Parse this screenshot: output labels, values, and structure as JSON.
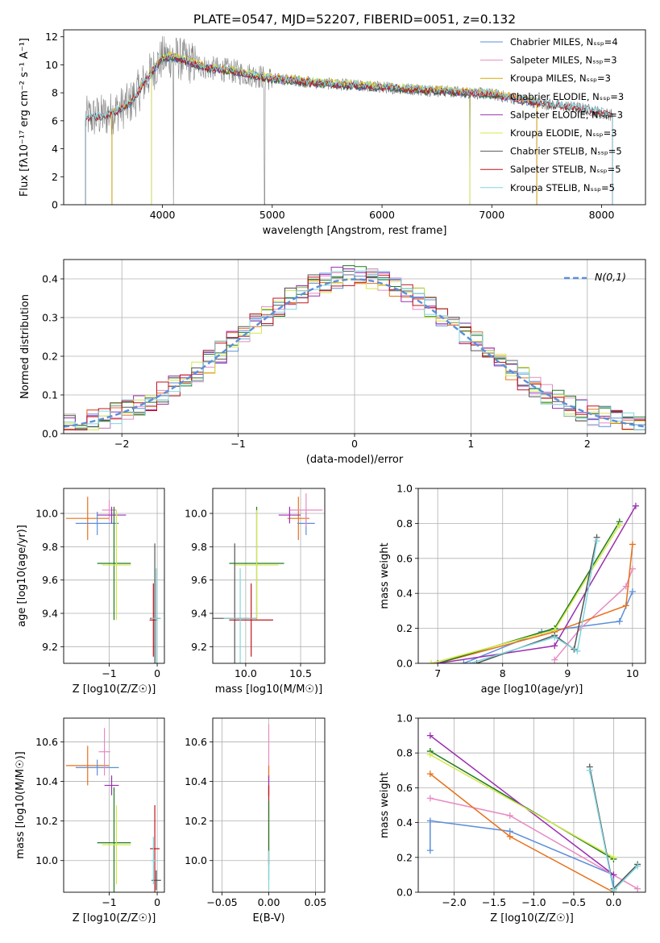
{
  "title": "PLATE=0547, MJD=52207, FIBERID=0051, z=0.132",
  "colors": {
    "Chabrier MILES": "#5b8fd9",
    "Salpeter MILES": "#e78ac3",
    "Kroupa MILES": "#d9a800",
    "Chabrier ELODIE": "#1f7a1f",
    "Salpeter ELODIE": "#9b30b0",
    "Kroupa ELODIE": "#d4e84a",
    "Chabrier STELIB": "#555555",
    "Salpeter STELIB": "#c0141e",
    "Kroupa STELIB": "#7fd6df",
    "orange": "#e8701a",
    "yellowgreen": "#b5d93c",
    "normal_curve": "#5b8fd9"
  },
  "chart_data": [
    {
      "id": "spectrum",
      "type": "line",
      "title": "PLATE=0547, MJD=52207, FIBERID=0051, z=0.132",
      "xlabel": "wavelength [Angstrom, rest frame]",
      "ylabel": "Flux [fλ10⁻¹⁷ erg cm⁻² s⁻¹ A⁻¹]",
      "xlim": [
        3100,
        8400
      ],
      "ylim": [
        0,
        12.5
      ],
      "xticks": [
        4000,
        5000,
        6000,
        7000,
        8000
      ],
      "yticks": [
        0,
        2,
        4,
        6,
        8,
        10,
        12
      ],
      "grid": false,
      "legend": "right",
      "legend_entries": [
        "Chabrier MILES, Nₛₛₚ=4",
        "Salpeter MILES, Nₛₛₚ=3",
        "Kroupa MILES, Nₛₛₚ=3",
        "Chabrier ELODIE, Nₛₛₚ=3",
        "Salpeter ELODIE, Nₛₛₚ=3",
        "Kroupa ELODIE, Nₛₛₚ=3",
        "Chabrier STELIB, Nₛₛₚ=5",
        "Salpeter STELIB, Nₛₛₚ=5",
        "Kroupa STELIB, Nₛₛₚ=5"
      ],
      "data_curve": {
        "x": [
          3300,
          3500,
          3700,
          3900,
          4000,
          4100,
          4200,
          4400,
          4600,
          4800,
          5000,
          5200,
          5400,
          5600,
          5800,
          6000,
          6200,
          6400,
          6600,
          6800,
          7000,
          7200,
          7400,
          7600,
          7800,
          8000,
          8100
        ],
        "y": [
          6.2,
          6.4,
          7.2,
          9.5,
          10.5,
          10.6,
          10.3,
          9.8,
          9.6,
          9.3,
          9.0,
          8.9,
          8.7,
          8.6,
          8.5,
          8.4,
          8.3,
          8.2,
          8.1,
          8.0,
          7.9,
          7.6,
          7.3,
          7.1,
          6.9,
          6.6,
          6.4
        ]
      }
    },
    {
      "id": "residuals",
      "type": "histogram",
      "xlabel": "(data-model)/error",
      "ylabel": "Normed distribution",
      "xlim": [
        -2.5,
        2.5
      ],
      "ylim": [
        0,
        0.45
      ],
      "xticks": [
        -2,
        -1,
        0,
        1,
        2
      ],
      "yticks": [
        0.0,
        0.1,
        0.2,
        0.3,
        0.4
      ],
      "grid": true,
      "legend": "top-right",
      "legend_entries": [
        "N(0,1)"
      ],
      "normal_curve": {
        "mean": 0,
        "sigma": 1
      }
    },
    {
      "id": "age_vs_Z",
      "type": "errorbar",
      "xlabel": "Z [log10(Z/Z☉)]",
      "ylabel": "age  [log10(age/yr)]",
      "xlim": [
        -1.95,
        0.15
      ],
      "ylim": [
        9.1,
        10.15
      ],
      "xticks": [
        -1,
        0
      ],
      "yticks": [
        9.2,
        9.4,
        9.6,
        9.8,
        10.0
      ],
      "grid": true,
      "points": [
        {
          "x": -1.45,
          "y": 9.97,
          "xerr": 0.45,
          "yerr": 0.13,
          "model": "orange"
        },
        {
          "x": -1.25,
          "y": 9.94,
          "xerr": 0.45,
          "yerr": 0.07,
          "model": "Chabrier MILES"
        },
        {
          "x": -1.0,
          "y": 10.02,
          "xerr": 0.15,
          "yerr": 0.06,
          "model": "Salpeter MILES"
        },
        {
          "x": -0.95,
          "y": 9.99,
          "xerr": 0.3,
          "yerr": 0.05,
          "model": "Salpeter ELODIE"
        },
        {
          "x": -0.9,
          "y": 9.7,
          "xerr": 0.35,
          "yerr": 0.34,
          "model": "Chabrier ELODIE"
        },
        {
          "x": -0.85,
          "y": 9.69,
          "xerr": 0.3,
          "yerr": 0.33,
          "model": "Kroupa ELODIE"
        },
        {
          "x": -0.05,
          "y": 9.37,
          "xerr": 0.1,
          "yerr": 0.45,
          "model": "Chabrier STELIB"
        },
        {
          "x": -0.08,
          "y": 9.36,
          "xerr": 0.08,
          "yerr": 0.22,
          "model": "Salpeter STELIB"
        },
        {
          "x": -0.02,
          "y": 9.37,
          "xerr": 0.1,
          "yerr": 0.3,
          "model": "Kroupa STELIB"
        }
      ]
    },
    {
      "id": "age_vs_mass",
      "type": "errorbar",
      "xlabel": "mass [log10(M/M☉)]",
      "ylabel": "",
      "xlim": [
        9.7,
        10.72
      ],
      "ylim": [
        9.1,
        10.15
      ],
      "xticks": [
        10.0,
        10.5
      ],
      "yticks": [
        9.2,
        9.4,
        9.6,
        9.8,
        10.0
      ],
      "grid": true,
      "points": [
        {
          "x": 10.48,
          "y": 9.97,
          "xerr": 0.1,
          "yerr": 0.13,
          "model": "orange"
        },
        {
          "x": 10.55,
          "y": 9.94,
          "xerr": 0.08,
          "yerr": 0.07,
          "model": "Chabrier MILES"
        },
        {
          "x": 10.55,
          "y": 10.02,
          "xerr": 0.15,
          "yerr": 0.1,
          "model": "Salpeter MILES"
        },
        {
          "x": 10.4,
          "y": 9.99,
          "xerr": 0.1,
          "yerr": 0.05,
          "model": "Salpeter ELODIE"
        },
        {
          "x": 10.1,
          "y": 9.7,
          "xerr": 0.25,
          "yerr": 0.34,
          "model": "Chabrier ELODIE"
        },
        {
          "x": 10.1,
          "y": 9.69,
          "xerr": 0.2,
          "yerr": 0.33,
          "model": "Kroupa ELODIE"
        },
        {
          "x": 9.9,
          "y": 9.37,
          "xerr": 0.2,
          "yerr": 0.45,
          "model": "Chabrier STELIB"
        },
        {
          "x": 10.05,
          "y": 9.36,
          "xerr": 0.2,
          "yerr": 0.22,
          "model": "Salpeter STELIB"
        },
        {
          "x": 9.95,
          "y": 9.37,
          "xerr": 0.15,
          "yerr": 0.3,
          "model": "Kroupa STELIB"
        }
      ]
    },
    {
      "id": "weight_vs_age",
      "type": "line",
      "xlabel": "age  [log10(age/yr)]",
      "ylabel": "mass weight",
      "xlim": [
        6.7,
        10.2
      ],
      "ylim": [
        0,
        1.0
      ],
      "xticks": [
        7,
        8,
        9,
        10
      ],
      "yticks": [
        0.0,
        0.2,
        0.4,
        0.6,
        0.8,
        1.0
      ],
      "grid": true,
      "series": [
        {
          "model": "Chabrier MILES",
          "x": [
            7.4,
            8.6,
            9.8,
            10.0
          ],
          "y": [
            0.0,
            0.18,
            0.24,
            0.41
          ]
        },
        {
          "model": "Salpeter MILES",
          "x": [
            8.8,
            9.2,
            9.9,
            10.0
          ],
          "y": [
            0.02,
            0.2,
            0.44,
            0.54
          ]
        },
        {
          "model": "orange",
          "x": [
            7.0,
            8.8,
            9.9,
            10.0
          ],
          "y": [
            0.0,
            0.18,
            0.33,
            0.68
          ]
        },
        {
          "model": "Chabrier ELODIE",
          "x": [
            7.0,
            8.8,
            9.8
          ],
          "y": [
            0.0,
            0.2,
            0.81
          ]
        },
        {
          "model": "Salpeter ELODIE",
          "x": [
            7.0,
            8.8,
            10.05
          ],
          "y": [
            0.0,
            0.1,
            0.9
          ]
        },
        {
          "model": "Kroupa ELODIE",
          "x": [
            6.9,
            8.8,
            9.8
          ],
          "y": [
            0.0,
            0.19,
            0.79
          ]
        },
        {
          "model": "Chabrier STELIB",
          "x": [
            7.6,
            8.8,
            9.1,
            9.45
          ],
          "y": [
            0.0,
            0.16,
            0.08,
            0.72
          ]
        },
        {
          "model": "Kroupa STELIB",
          "x": [
            7.5,
            8.8,
            9.15,
            9.45
          ],
          "y": [
            0.0,
            0.15,
            0.07,
            0.7
          ]
        }
      ]
    },
    {
      "id": "mass_vs_Z",
      "type": "errorbar",
      "xlabel": "Z [log10(Z/Z☉)]",
      "ylabel": "mass [log10(M/M☉)]",
      "xlim": [
        -1.95,
        0.15
      ],
      "ylim": [
        9.84,
        10.72
      ],
      "xticks": [
        -1,
        0
      ],
      "yticks": [
        10.0,
        10.2,
        10.4,
        10.6
      ],
      "grid": true,
      "points": [
        {
          "x": -1.45,
          "y": 10.48,
          "xerr": 0.45,
          "yerr": 0.1,
          "model": "orange"
        },
        {
          "x": -1.25,
          "y": 10.47,
          "xerr": 0.45,
          "yerr": 0.04,
          "model": "Chabrier MILES"
        },
        {
          "x": -1.1,
          "y": 10.55,
          "xerr": 0.12,
          "yerr": 0.12,
          "model": "Salpeter MILES"
        },
        {
          "x": -0.95,
          "y": 10.38,
          "xerr": 0.15,
          "yerr": 0.05,
          "model": "Salpeter ELODIE"
        },
        {
          "x": -0.9,
          "y": 10.09,
          "xerr": 0.35,
          "yerr": 0.28,
          "model": "Chabrier ELODIE"
        },
        {
          "x": -0.85,
          "y": 10.08,
          "xerr": 0.3,
          "yerr": 0.2,
          "model": "Kroupa ELODIE"
        },
        {
          "x": -0.02,
          "y": 9.9,
          "xerr": 0.1,
          "yerr": 0.05,
          "model": "Chabrier STELIB"
        },
        {
          "x": -0.05,
          "y": 10.06,
          "xerr": 0.1,
          "yerr": 0.22,
          "model": "Salpeter STELIB"
        },
        {
          "x": -0.08,
          "y": 10.0,
          "xerr": 0.05,
          "yerr": 0.12,
          "model": "Kroupa STELIB"
        }
      ]
    },
    {
      "id": "mass_vs_EBV",
      "type": "errorbar",
      "xlabel": "E(B-V)",
      "ylabel": "",
      "xlim": [
        -0.06,
        0.06
      ],
      "ylim": [
        9.84,
        10.72
      ],
      "xticks": [
        -0.05,
        0.0,
        0.05
      ],
      "yticks": [
        10.0,
        10.2,
        10.4,
        10.6
      ],
      "grid": true,
      "points": [
        {
          "x": 0.0,
          "y": 10.55,
          "xerr": 0.0,
          "yerr": 0.14,
          "model": "Salpeter MILES"
        },
        {
          "x": 0.0,
          "y": 10.4,
          "xerr": 0.0,
          "yerr": 0.08,
          "model": "orange"
        },
        {
          "x": 0.0,
          "y": 10.38,
          "xerr": 0.0,
          "yerr": 0.05,
          "model": "Salpeter ELODIE"
        },
        {
          "x": 0.0,
          "y": 10.18,
          "xerr": 0.0,
          "yerr": 0.2,
          "model": "Salpeter STELIB"
        },
        {
          "x": 0.0,
          "y": 10.1,
          "xerr": 0.0,
          "yerr": 0.2,
          "model": "Chabrier ELODIE"
        },
        {
          "x": 0.0,
          "y": 9.95,
          "xerr": 0.0,
          "yerr": 0.1,
          "model": "Kroupa STELIB"
        }
      ]
    },
    {
      "id": "weight_vs_Z",
      "type": "line",
      "xlabel": "Z [log10(Z/Z☉)]",
      "ylabel": "mass weight",
      "xlim": [
        -2.45,
        0.4
      ],
      "ylim": [
        0,
        1.0
      ],
      "xticks": [
        -2.0,
        -1.5,
        -1.0,
        -0.5,
        0.0
      ],
      "yticks": [
        0.0,
        0.2,
        0.4,
        0.6,
        0.8,
        1.0
      ],
      "grid": true,
      "series": [
        {
          "model": "Chabrier MILES",
          "x": [
            -2.3,
            -2.3,
            -1.3,
            0.0,
            0.0
          ],
          "y": [
            0.24,
            0.41,
            0.35,
            0.1,
            0.0
          ]
        },
        {
          "model": "Salpeter MILES",
          "x": [
            -2.3,
            -1.3,
            0.3
          ],
          "y": [
            0.54,
            0.44,
            0.02
          ]
        },
        {
          "model": "orange",
          "x": [
            -2.3,
            -1.3,
            0.0
          ],
          "y": [
            0.68,
            0.32,
            0.0
          ]
        },
        {
          "model": "Chabrier ELODIE",
          "x": [
            -2.3,
            0.0
          ],
          "y": [
            0.81,
            0.19
          ]
        },
        {
          "model": "Salpeter ELODIE",
          "x": [
            -2.3,
            0.0
          ],
          "y": [
            0.9,
            0.1
          ]
        },
        {
          "model": "Kroupa ELODIE",
          "x": [
            -2.3,
            0.0
          ],
          "y": [
            0.79,
            0.2
          ]
        },
        {
          "model": "Chabrier STELIB",
          "x": [
            -0.3,
            0.0,
            0.3
          ],
          "y": [
            0.72,
            0.02,
            0.16
          ]
        },
        {
          "model": "Kroupa STELIB",
          "x": [
            -0.3,
            0.0,
            0.3
          ],
          "y": [
            0.7,
            0.01,
            0.15
          ]
        }
      ]
    }
  ]
}
